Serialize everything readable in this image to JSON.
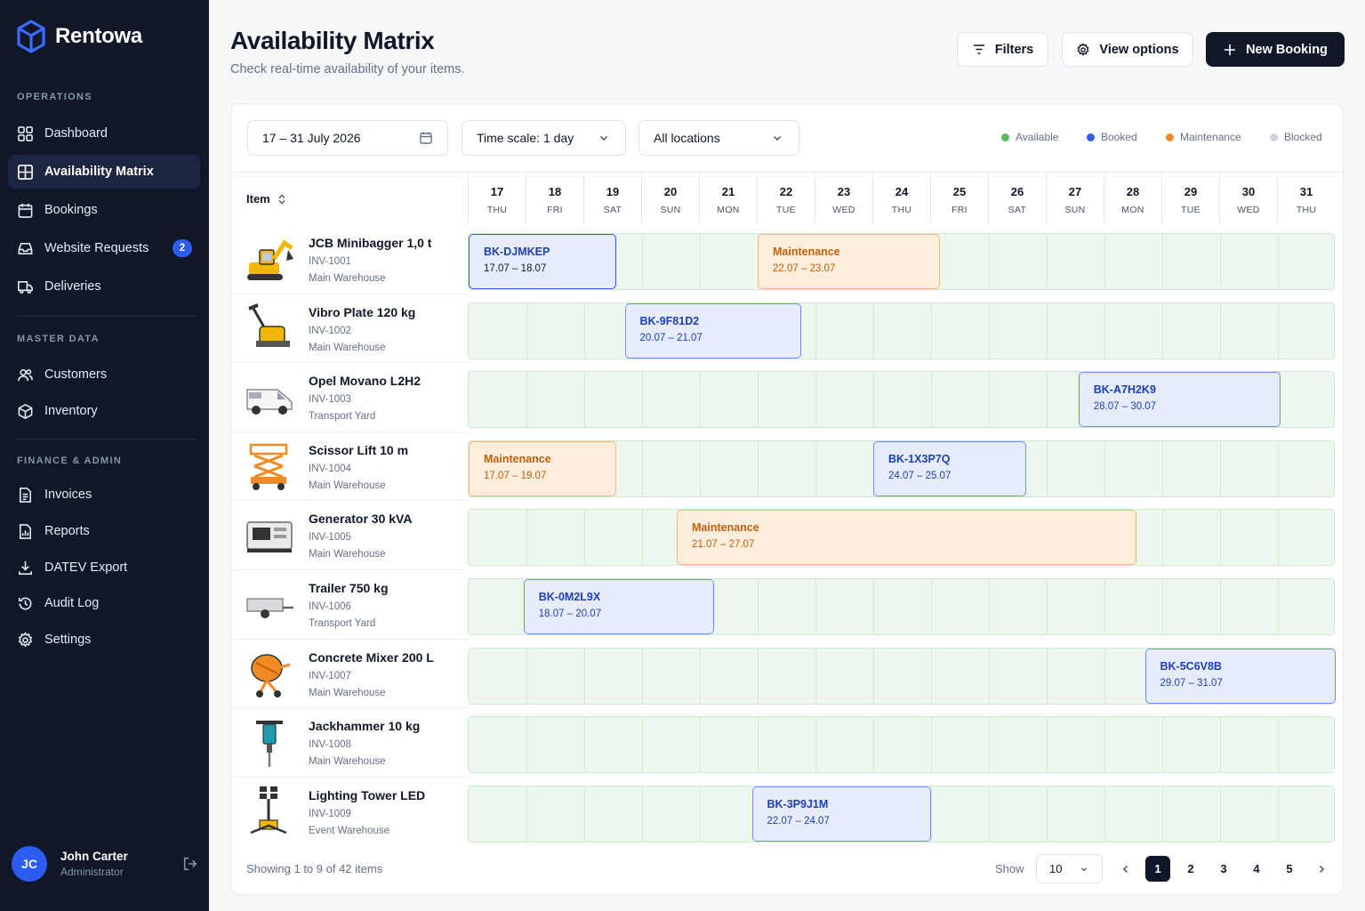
{
  "app": {
    "name": "Rentowa"
  },
  "sidebar": {
    "sections": [
      "OPERATIONS",
      "MASTER DATA",
      "FINANCE & ADMIN"
    ],
    "items": [
      {
        "label": "Dashboard",
        "icon": "dashboard-icon"
      },
      {
        "label": "Availability Matrix",
        "icon": "grid-icon",
        "active": true
      },
      {
        "label": "Bookings",
        "icon": "calendar-icon"
      },
      {
        "label": "Website Requests",
        "icon": "inbox-icon",
        "badge": "2"
      },
      {
        "label": "Deliveries",
        "icon": "truck-icon"
      },
      {
        "label": "Customers",
        "icon": "users-icon"
      },
      {
        "label": "Inventory",
        "icon": "box-icon"
      },
      {
        "label": "Invoices",
        "icon": "invoice-icon"
      },
      {
        "label": "Reports",
        "icon": "report-icon"
      },
      {
        "label": "DATEV Export",
        "icon": "download-icon"
      },
      {
        "label": "Audit Log",
        "icon": "history-icon"
      },
      {
        "label": "Settings",
        "icon": "gear-icon"
      }
    ],
    "user": {
      "initials": "JC",
      "name": "John Carter",
      "role": "Administrator"
    }
  },
  "header": {
    "title": "Availability Matrix",
    "subtitle": "Check real-time availability of your items.",
    "filters": "Filters",
    "view_options": "View options",
    "new_booking": "New Booking"
  },
  "controls": {
    "date_range": "17 – 31 July 2026",
    "time_scale": "Time scale: 1 day",
    "locations": "All locations"
  },
  "legend": [
    {
      "label": "Available",
      "color": "#5cb85c"
    },
    {
      "label": "Booked",
      "color": "#2f5cf0"
    },
    {
      "label": "Maintenance",
      "color": "#f08a24"
    },
    {
      "label": "Blocked",
      "color": "#d0d5dd"
    }
  ],
  "table": {
    "item_header": "Item",
    "days": [
      {
        "d": "17",
        "w": "THU"
      },
      {
        "d": "18",
        "w": "FRI"
      },
      {
        "d": "19",
        "w": "SAT"
      },
      {
        "d": "20",
        "w": "SUN"
      },
      {
        "d": "21",
        "w": "MON"
      },
      {
        "d": "22",
        "w": "TUE"
      },
      {
        "d": "23",
        "w": "WED"
      },
      {
        "d": "24",
        "w": "THU"
      },
      {
        "d": "25",
        "w": "FRI"
      },
      {
        "d": "26",
        "w": "SAT"
      },
      {
        "d": "27",
        "w": "SUN"
      },
      {
        "d": "28",
        "w": "MON"
      },
      {
        "d": "29",
        "w": "TUE"
      },
      {
        "d": "30",
        "w": "WED"
      },
      {
        "d": "31",
        "w": "THU"
      }
    ],
    "rows": [
      {
        "name": "JCB Minibagger 1,0 t",
        "inv": "INV-1001",
        "loc": "Main Warehouse",
        "icon": "excavator-icon",
        "bars": [
          {
            "type": "booked",
            "code": "BK-DJMKEP",
            "dates": "17.07 – 18.07",
            "start": 0,
            "end": 2.55,
            "selected": true
          },
          {
            "type": "maint",
            "code": "Maintenance",
            "dates": "22.07 – 23.07",
            "start": 5,
            "end": 8.15
          }
        ]
      },
      {
        "name": "Vibro Plate 120 kg",
        "inv": "INV-1002",
        "loc": "Main Warehouse",
        "icon": "vibro-plate-icon",
        "bars": [
          {
            "type": "booked",
            "code": "BK-9F81D2",
            "dates": "20.07 – 21.07",
            "start": 2.7,
            "end": 5.75
          }
        ]
      },
      {
        "name": "Opel Movano L2H2",
        "inv": "INV-1003",
        "loc": "Transport Yard",
        "icon": "van-icon",
        "bars": [
          {
            "type": "booked",
            "code": "BK-A7H2K9",
            "dates": "28.07 – 30.07",
            "start": 10.55,
            "end": 14.05
          }
        ]
      },
      {
        "name": "Scissor Lift 10 m",
        "inv": "INV-1004",
        "loc": "Main Warehouse",
        "icon": "scissor-lift-icon",
        "bars": [
          {
            "type": "maint",
            "code": "Maintenance",
            "dates": "17.07 – 19.07",
            "start": 0,
            "end": 2.55
          },
          {
            "type": "booked",
            "code": "BK-1X3P7Q",
            "dates": "24.07 – 25.07",
            "start": 7.0,
            "end": 9.65
          }
        ]
      },
      {
        "name": "Generator 30 kVA",
        "inv": "INV-1005",
        "loc": "Main Warehouse",
        "icon": "generator-icon",
        "bars": [
          {
            "type": "maint",
            "code": "Maintenance",
            "dates": "21.07 – 27.07",
            "start": 3.6,
            "end": 11.55
          }
        ]
      },
      {
        "name": "Trailer 750 kg",
        "inv": "INV-1006",
        "loc": "Transport Yard",
        "icon": "trailer-icon",
        "bars": [
          {
            "type": "booked",
            "code": "BK-0M2L9X",
            "dates": "18.07 – 20.07",
            "start": 0.95,
            "end": 4.25
          }
        ]
      },
      {
        "name": "Concrete Mixer 200 L",
        "inv": "INV-1007",
        "loc": "Main Warehouse",
        "icon": "mixer-icon",
        "bars": [
          {
            "type": "booked",
            "code": "BK-5C6V8B",
            "dates": "29.07 – 31.07",
            "start": 11.7,
            "end": 15
          }
        ]
      },
      {
        "name": "Jackhammer 10 kg",
        "inv": "INV-1008",
        "loc": "Main Warehouse",
        "icon": "jackhammer-icon",
        "bars": []
      },
      {
        "name": "Lighting Tower LED",
        "inv": "INV-1009",
        "loc": "Event Warehouse",
        "icon": "light-tower-icon",
        "bars": [
          {
            "type": "booked",
            "code": "BK-3P9J1M",
            "dates": "22.07 – 24.07",
            "start": 4.9,
            "end": 8.0
          }
        ]
      }
    ]
  },
  "footer": {
    "showing": "Showing 1 to 9 of 42 items",
    "show_label": "Show",
    "page_size": "10",
    "pages": [
      "1",
      "2",
      "3",
      "4",
      "5"
    ]
  }
}
